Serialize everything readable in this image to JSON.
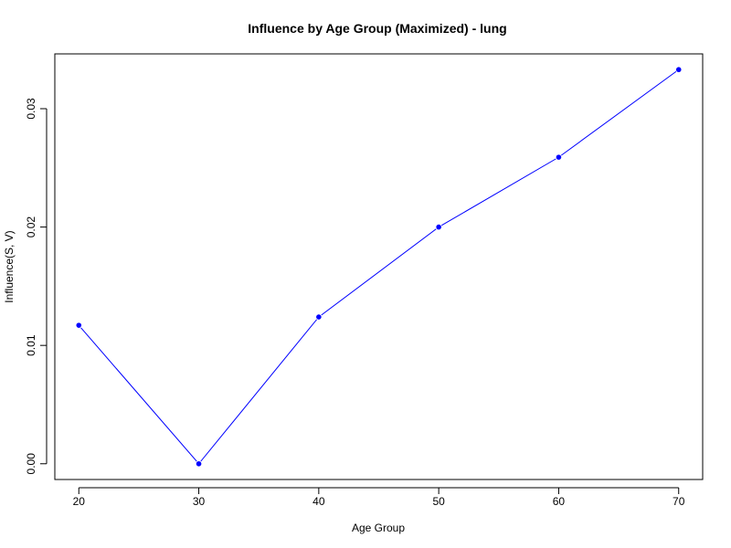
{
  "chart_data": {
    "type": "line",
    "title": "Influence by Age Group (Maximized) - lung",
    "xlabel": "Age Group",
    "ylabel": "Influence(S, V)",
    "x": [
      20,
      30,
      40,
      50,
      60,
      70
    ],
    "series": [
      {
        "values": [
          0.0117,
          0.0,
          0.0124,
          0.02,
          0.0259,
          0.0333
        ]
      }
    ],
    "xlim": [
      18,
      72
    ],
    "ylim": [
      -0.00133,
      0.03463
    ],
    "xticks": [
      20,
      30,
      40,
      50,
      60,
      70
    ],
    "xtick_labels": [
      "20",
      "30",
      "40",
      "50",
      "60",
      "70"
    ],
    "yticks": [
      0.0,
      0.01,
      0.02,
      0.03
    ],
    "ytick_labels": [
      "0.00",
      "0.01",
      "0.02",
      "0.03"
    ],
    "grid": false,
    "legend": "none",
    "line_color": "#0000ff",
    "marker_color": "#0000ff"
  }
}
